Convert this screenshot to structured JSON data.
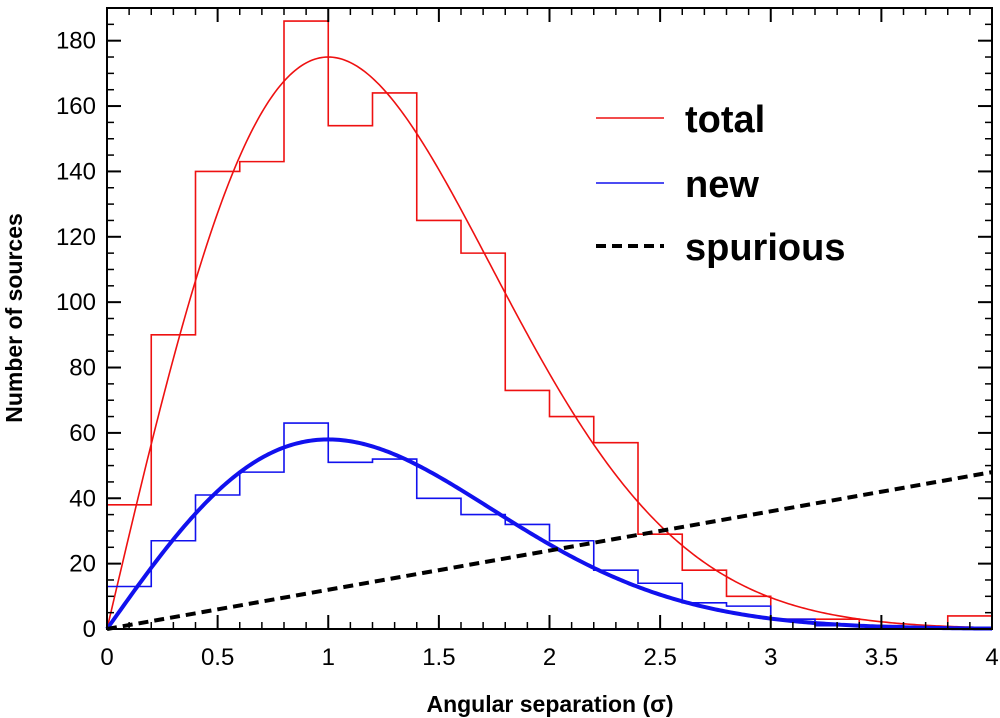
{
  "chart_data": {
    "type": "histogram",
    "xlabel": "Angular separation (σ)",
    "ylabel": "Number of sources",
    "xlim": [
      0,
      4
    ],
    "ylim": [
      0,
      190
    ],
    "x_ticks": [
      0,
      0.5,
      1,
      1.5,
      2,
      2.5,
      3,
      3.5,
      4
    ],
    "x_tick_labels": [
      "0",
      "0.5",
      "1",
      "1.5",
      "2",
      "2.5",
      "3",
      "3.5",
      "4"
    ],
    "y_ticks": [
      0,
      20,
      40,
      60,
      80,
      100,
      120,
      140,
      160,
      180
    ],
    "y_tick_labels": [
      "0",
      "20",
      "40",
      "60",
      "80",
      "100",
      "120",
      "140",
      "160",
      "180"
    ],
    "bin_width": 0.2,
    "bin_edges": [
      0,
      0.2,
      0.4,
      0.6,
      0.8,
      1.0,
      1.2,
      1.4,
      1.6,
      1.8,
      2.0,
      2.2,
      2.4,
      2.6,
      2.8,
      3.0,
      3.2,
      3.4,
      3.6,
      3.8,
      4.0
    ],
    "grid": false,
    "legend_position": "top-right",
    "series": [
      {
        "name": "total",
        "kind": "histogram+fit",
        "color": "#ee1111",
        "values": [
          38,
          90,
          140,
          143,
          186,
          154,
          164,
          125,
          115,
          73,
          65,
          57,
          29,
          18,
          10,
          3,
          3,
          1,
          0,
          4
        ],
        "fit_peak": 175
      },
      {
        "name": "new",
        "kind": "histogram+fit",
        "color": "#1111ee",
        "values": [
          13,
          27,
          41,
          48,
          63,
          51,
          52,
          40,
          35,
          32,
          27,
          18,
          14,
          8,
          7,
          3,
          1,
          1,
          0,
          0
        ],
        "fit_peak": 58
      },
      {
        "name": "spurious",
        "kind": "line",
        "color": "#000000",
        "dashed": true,
        "slope": 12
      }
    ]
  }
}
